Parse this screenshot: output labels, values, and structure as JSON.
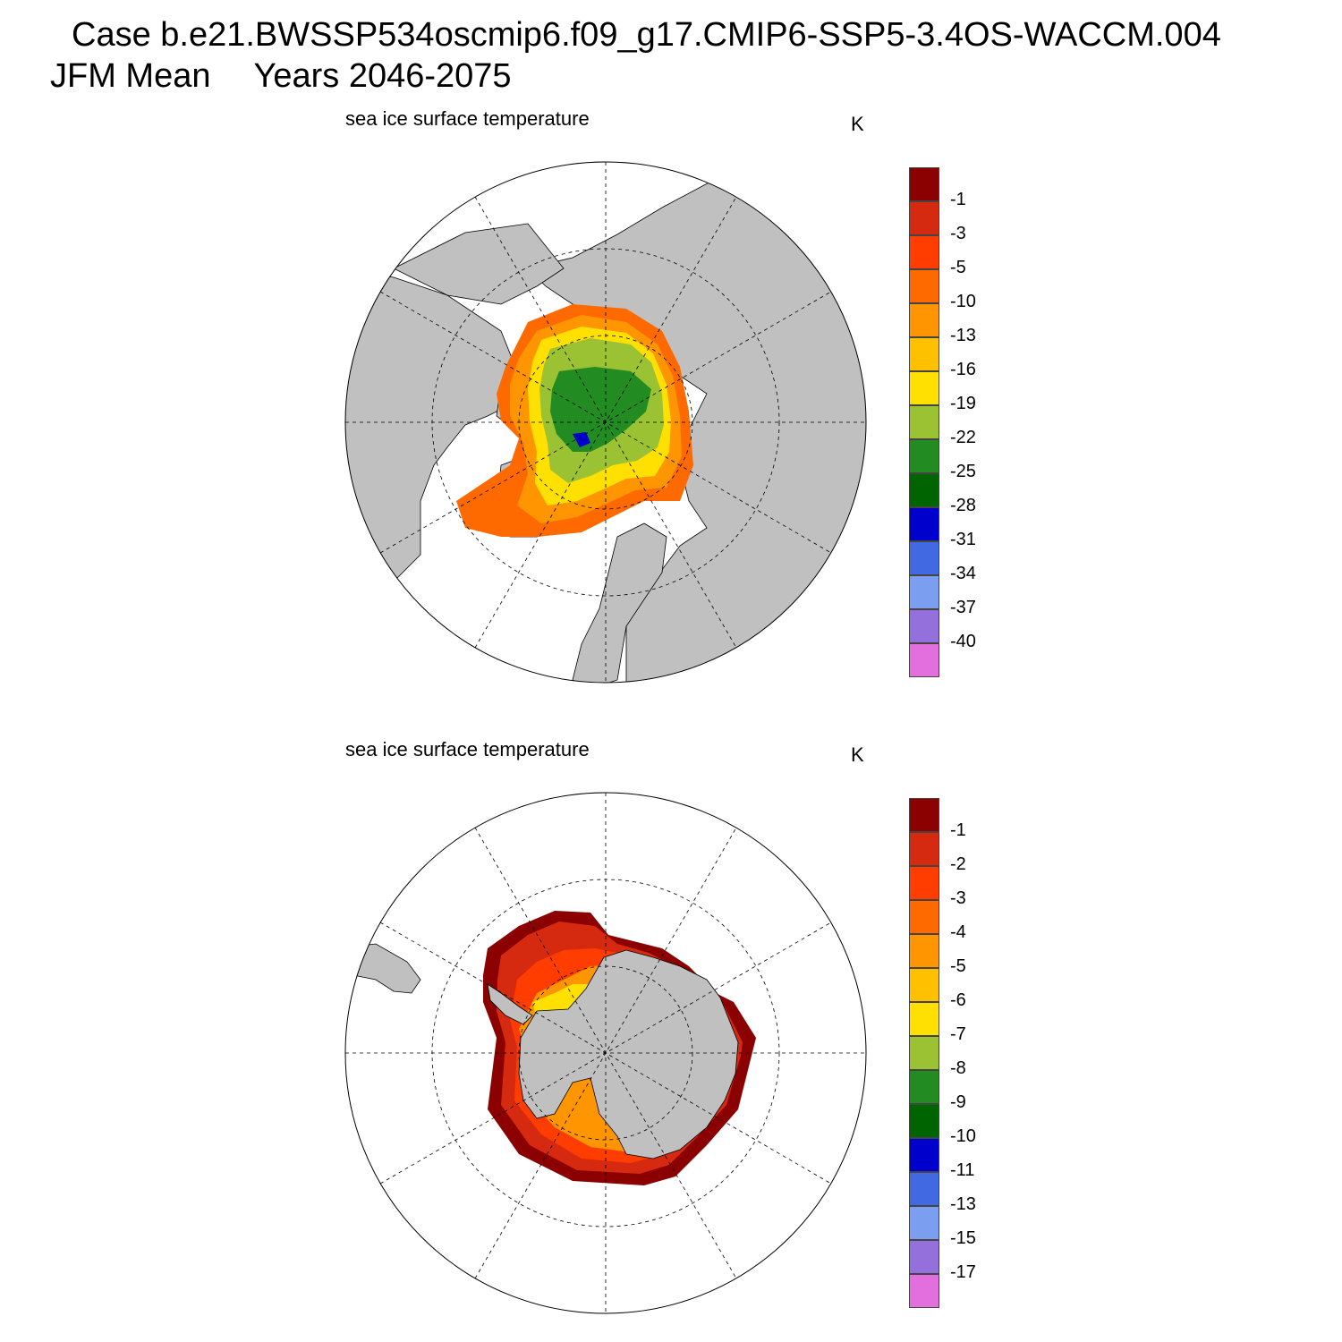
{
  "header": {
    "case_line": "Case b.e21.BWSSP534oscmip6.f09_g17.CMIP6-SSP5-3.4OS-WACCM.004",
    "season": "JFM Mean",
    "years": "Years 2046-2075"
  },
  "panels": [
    {
      "title": "sea ice surface temperature",
      "units": "K",
      "hemisphere": "north",
      "colorbar": {
        "labels": [
          "-1",
          "-3",
          "-5",
          "-10",
          "-13",
          "-16",
          "-19",
          "-22",
          "-25",
          "-28",
          "-31",
          "-34",
          "-37",
          "-40"
        ],
        "colors": [
          "#8B0000",
          "#D62A10",
          "#FF3D00",
          "#FF6A00",
          "#FF9500",
          "#FFC000",
          "#FFE000",
          "#9BC232",
          "#228B22",
          "#006400",
          "#0000CD",
          "#4169E1",
          "#7B9EF0",
          "#9370DB",
          "#E36FDE"
        ]
      }
    },
    {
      "title": "sea ice surface temperature",
      "units": "K",
      "hemisphere": "south",
      "colorbar": {
        "labels": [
          "-1",
          "-2",
          "-3",
          "-4",
          "-5",
          "-6",
          "-7",
          "-8",
          "-9",
          "-10",
          "-11",
          "-13",
          "-15",
          "-17"
        ],
        "colors": [
          "#8B0000",
          "#D62A10",
          "#FF3D00",
          "#FF6A00",
          "#FF9500",
          "#FFC000",
          "#FFE000",
          "#9BC232",
          "#228B22",
          "#006400",
          "#0000CD",
          "#4169E1",
          "#7B9EF0",
          "#9370DB",
          "#E36FDE"
        ]
      }
    }
  ]
}
